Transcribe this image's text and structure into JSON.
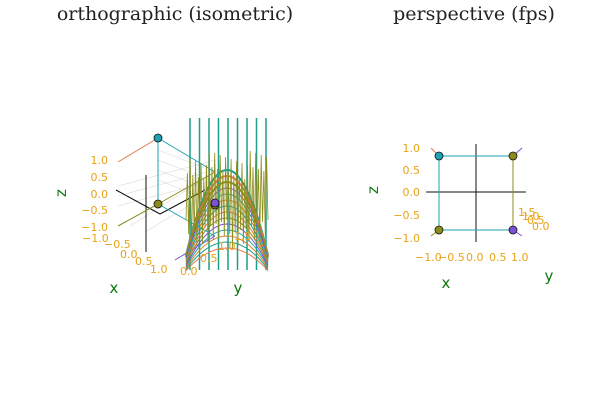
{
  "figure": {
    "left_title": "orthographic (isometric)",
    "right_title": "perspective (fps)"
  },
  "colors": {
    "tick": "#e8a317",
    "axis_label": "#0a7a0a",
    "background": "#ffffff"
  },
  "chart_data": [
    {
      "type": "line",
      "title": "orthographic (isometric)",
      "projection": "orthographic",
      "axes": {
        "xlabel": "x",
        "ylabel": "y",
        "zlabel": "z",
        "x_ticks": [
          "−1.0",
          "−0.5",
          "0.0",
          "0.5",
          "1.0"
        ],
        "y_ticks": [
          "0.0",
          "0.5",
          "1.0",
          "1.5"
        ],
        "z_ticks": [
          "1.0",
          "0.5",
          "0.0",
          "−0.5",
          "−1.0"
        ],
        "x_range": [
          -1,
          1
        ],
        "y_range": [
          0,
          1.5
        ],
        "z_range": [
          -1,
          1
        ]
      },
      "markers": [
        {
          "x": 0,
          "y": 0,
          "z": 1,
          "color": "#1fa3b4"
        },
        {
          "x": 1,
          "y": 0,
          "z": 0,
          "color": "#8c8c1a"
        },
        {
          "x": 0,
          "y": 1,
          "z": 0,
          "color": "#7b52d6"
        },
        {
          "x": 0,
          "y": 0,
          "z": -1,
          "color": "#8c8c1a"
        }
      ],
      "series_colors": [
        "#1f9e89",
        "#e8794b",
        "#8c8c1a",
        "#7b52d6",
        "#2aa3a3",
        "#d98324"
      ],
      "grid": true,
      "legend": "none"
    },
    {
      "type": "line",
      "title": "perspective (fps)",
      "projection": "perspective",
      "axes": {
        "xlabel": "x",
        "ylabel": "y",
        "zlabel": "z",
        "x_ticks": [
          "−1.0",
          "−0.5",
          "0.0",
          "0.5",
          "1.0"
        ],
        "y_ticks": [
          "1.5",
          "1.0",
          "0.5",
          "0.0"
        ],
        "z_ticks": [
          "1.0",
          "0.5",
          "0.0",
          "−0.5",
          "−1.0"
        ],
        "x_range": [
          -1,
          1
        ],
        "y_range": [
          0,
          1.5
        ],
        "z_range": [
          -1,
          1
        ]
      },
      "markers": [
        {
          "x": -1,
          "z": 1,
          "color": "#1fa3b4"
        },
        {
          "x": 1,
          "z": 1,
          "color": "#8c8c1a"
        },
        {
          "x": -1,
          "z": -1,
          "color": "#8c8c1a"
        },
        {
          "x": 1,
          "z": -1,
          "color": "#7b52d6"
        }
      ],
      "grid": false,
      "legend": "none"
    }
  ]
}
